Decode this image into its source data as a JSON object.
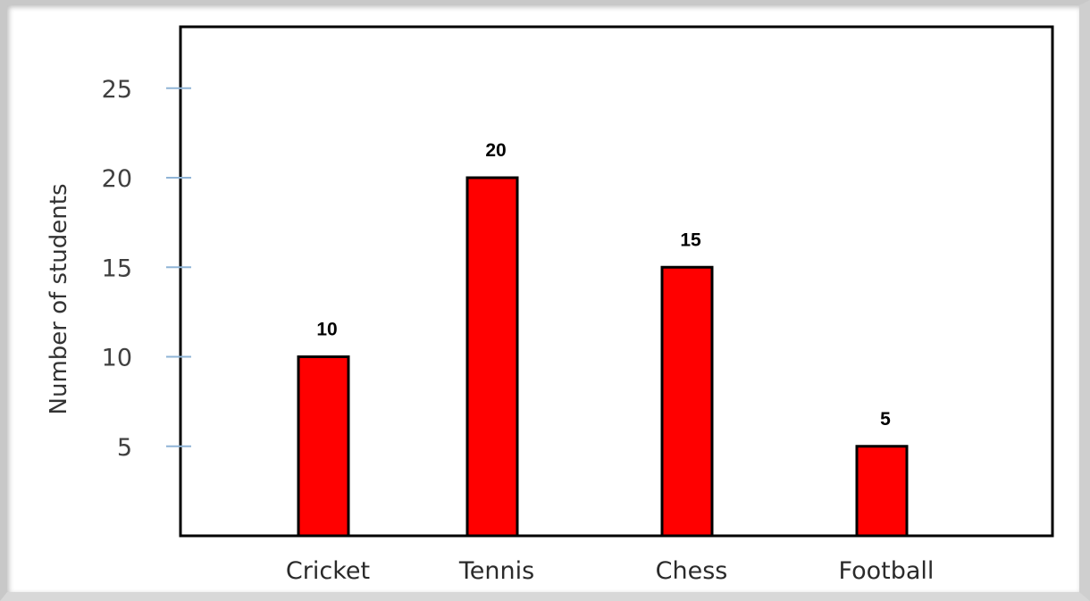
{
  "chart_data": {
    "type": "bar",
    "title": "",
    "xlabel": "",
    "ylabel": "Number of students",
    "categories": [
      "Cricket",
      "Tennis",
      "Chess",
      "Football"
    ],
    "values": [
      10,
      20,
      15,
      5
    ],
    "data_labels": [
      "10",
      "20",
      "15",
      "5"
    ],
    "y_ticks": [
      5,
      10,
      15,
      20,
      25
    ],
    "y_tick_labels": [
      "5",
      "10",
      "15",
      "20",
      "25"
    ],
    "ylim": [
      0,
      28
    ],
    "grid": false,
    "legend": "none",
    "colors": {
      "bar_fill": "#ff0000",
      "bar_stroke": "#000000",
      "axis": "#000000",
      "tick_mark": "#8fb4d6"
    }
  }
}
